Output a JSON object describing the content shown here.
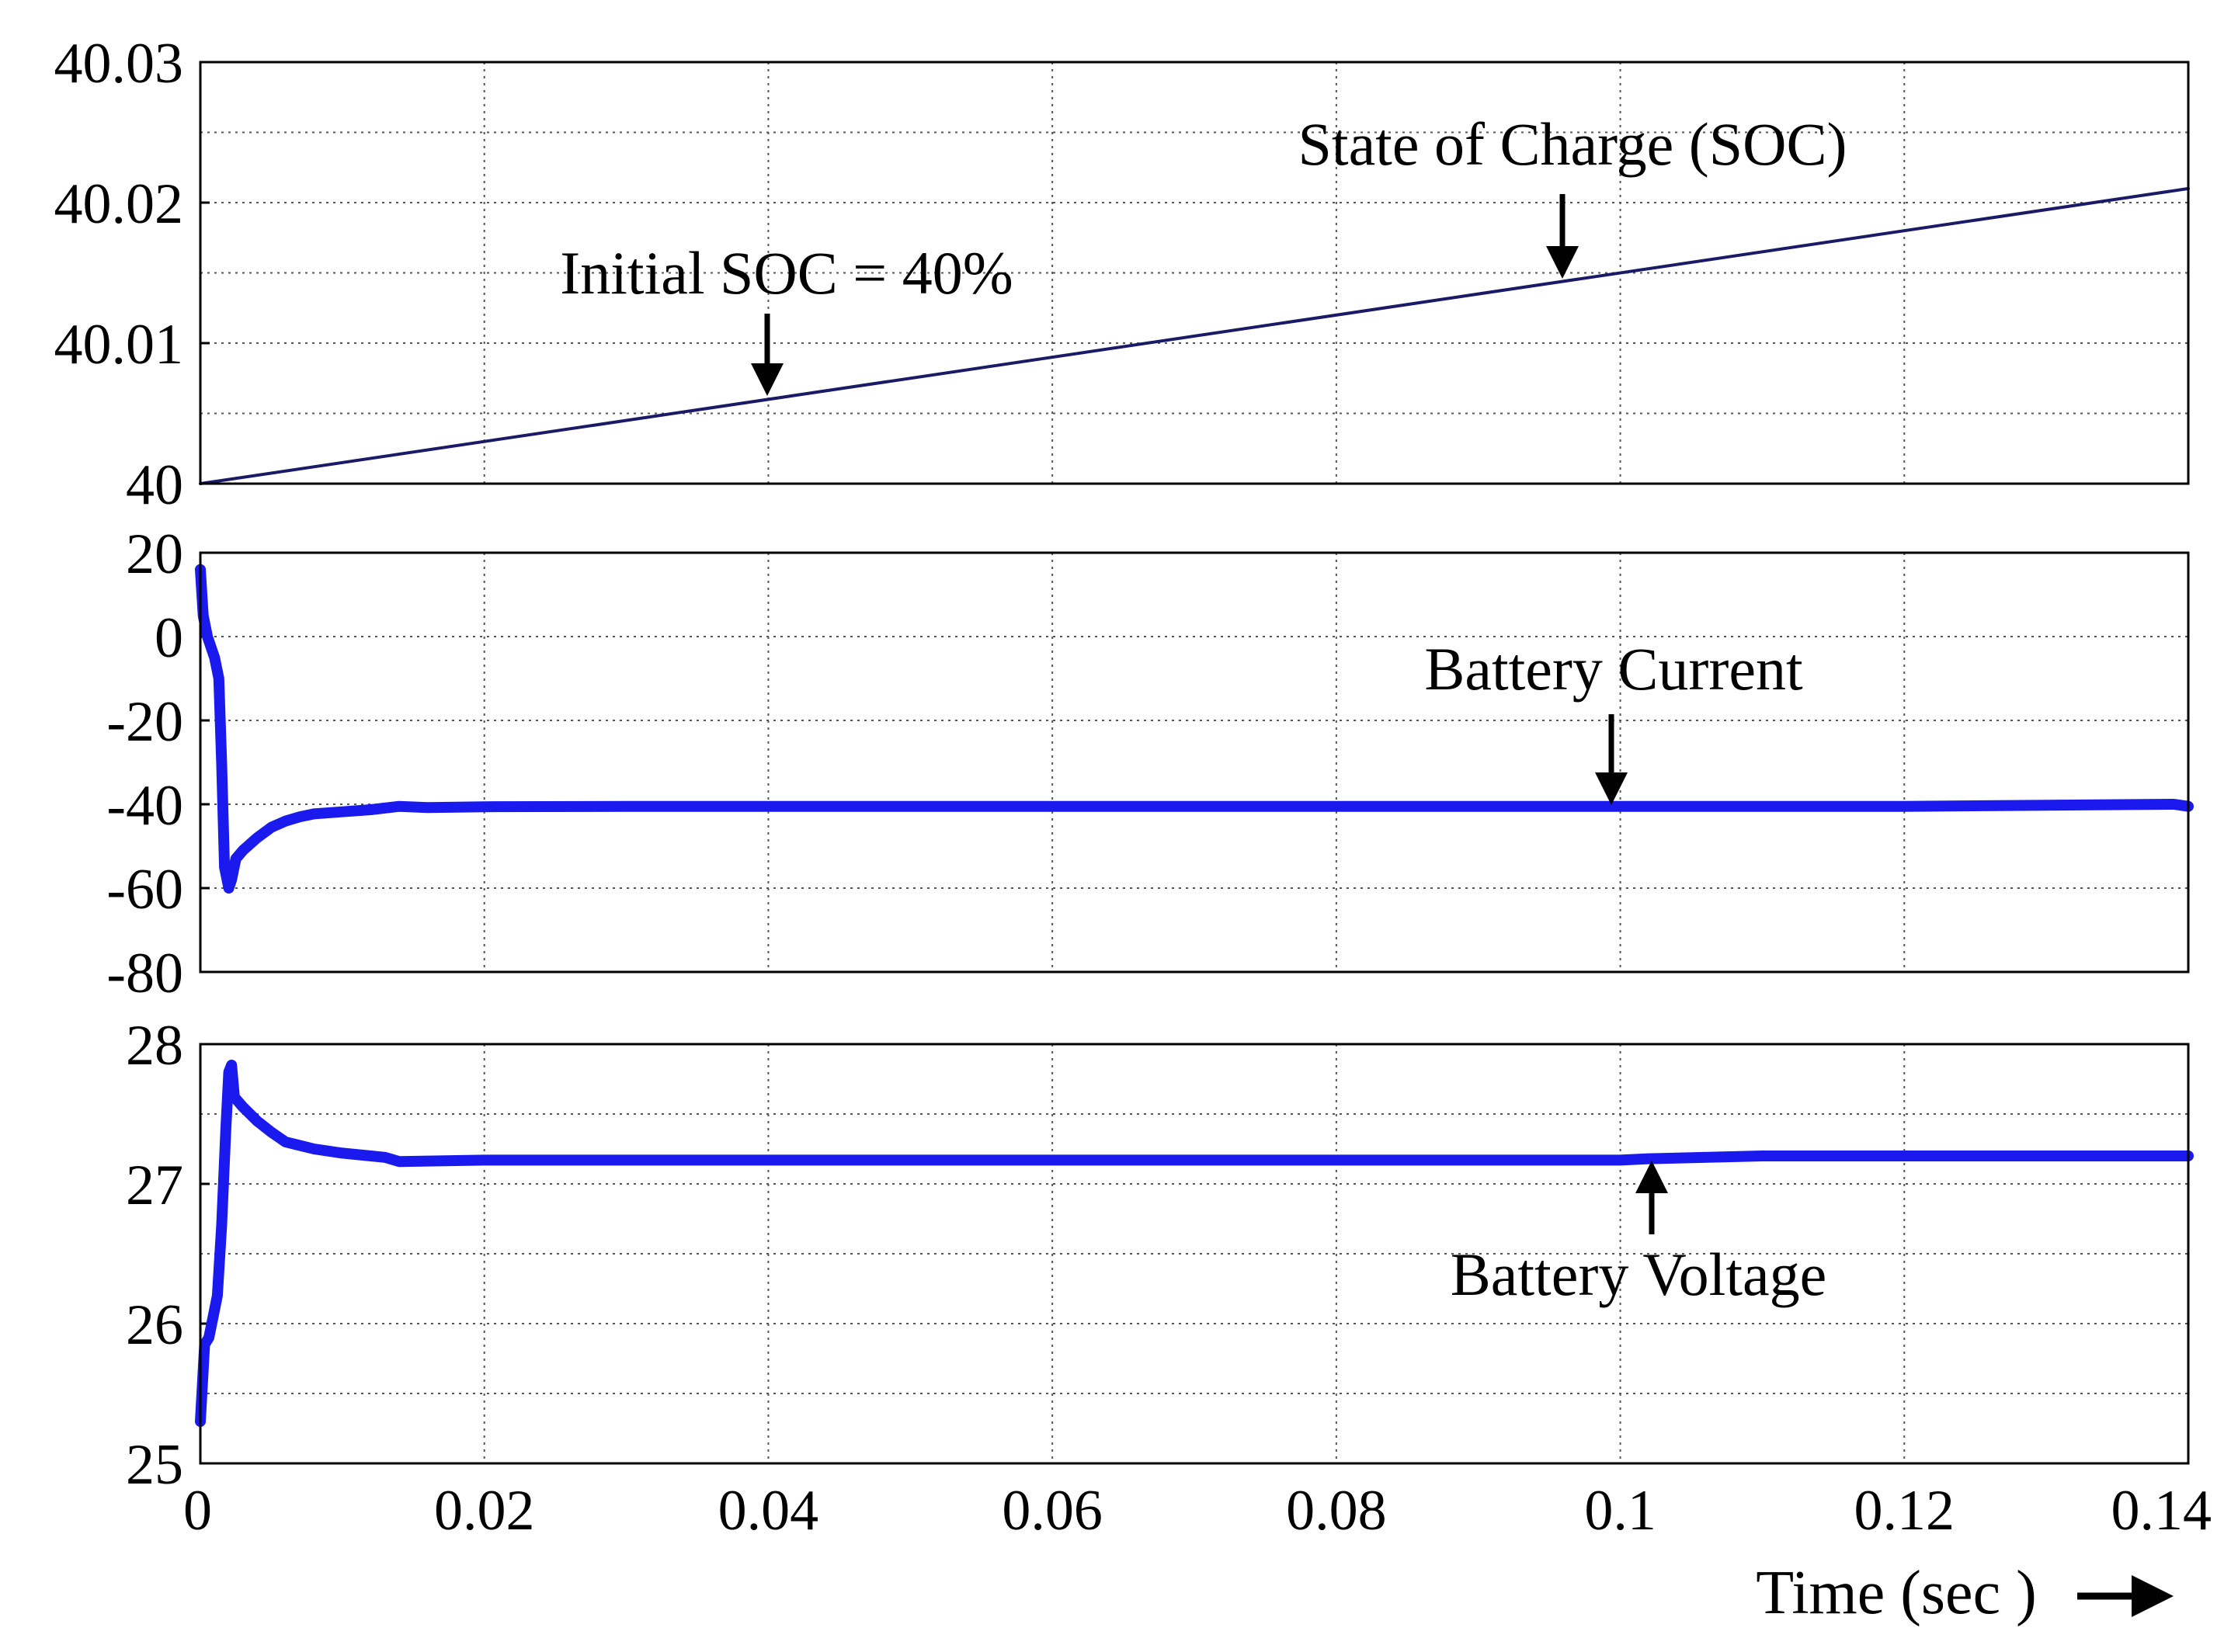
{
  "chart_data": [
    {
      "type": "line",
      "name": "soc",
      "title": "",
      "xlabel": "",
      "ylabel": "",
      "xlim": [
        0,
        0.14
      ],
      "ylim": [
        40,
        40.03
      ],
      "grid": true,
      "y_ticks": [
        40,
        40.01,
        40.02,
        40.03
      ],
      "y_tick_labels": [
        "40",
        "40.01",
        "40.02",
        "40.03"
      ],
      "line_color": "#1a1a66",
      "series": [
        {
          "name": "State of Charge (SOC)",
          "x": [
            0,
            0.14
          ],
          "y": [
            40,
            40.021
          ]
        }
      ],
      "annotations": [
        {
          "text": "State of Charge (SOC)",
          "x": 0.096,
          "y": 40.0148
        },
        {
          "text": "Initial SOC = 40%",
          "x": 0.04,
          "y": 40.0065
        }
      ]
    },
    {
      "type": "line",
      "name": "current",
      "title": "",
      "xlabel": "",
      "ylabel": "",
      "xlim": [
        0,
        0.14
      ],
      "ylim": [
        -80,
        20
      ],
      "grid": true,
      "y_ticks": [
        -80,
        -60,
        -40,
        -20,
        0,
        20
      ],
      "y_tick_labels": [
        "-80",
        "-60",
        "-40",
        "-20",
        "0",
        "20"
      ],
      "line_color": "#1a1aee",
      "series": [
        {
          "name": "Battery Current",
          "x": [
            0,
            0.0002,
            0.0005,
            0.0008,
            0.001,
            0.0013,
            0.0015,
            0.0017,
            0.002,
            0.0022,
            0.0025,
            0.003,
            0.004,
            0.005,
            0.006,
            0.007,
            0.008,
            0.01,
            0.012,
            0.014,
            0.016,
            0.02,
            0.03,
            0.05,
            0.07,
            0.09,
            0.1,
            0.12,
            0.139,
            0.14
          ],
          "y": [
            16,
            5,
            0,
            -3,
            -5,
            -10,
            -30,
            -55,
            -60,
            -58,
            -53,
            -51,
            -48,
            -45.5,
            -44,
            -43,
            -42.3,
            -41.8,
            -41.3,
            -40.5,
            -40.8,
            -40.6,
            -40.5,
            -40.5,
            -40.5,
            -40.5,
            -40.5,
            -40.5,
            -40,
            -40.5
          ]
        }
      ],
      "annotations": [
        {
          "text": "Battery Current",
          "x": 0.0995,
          "y": -40
        }
      ]
    },
    {
      "type": "line",
      "name": "voltage",
      "title": "",
      "xlabel": "Time (sec )",
      "ylabel": "",
      "xlim": [
        0,
        0.14
      ],
      "ylim": [
        25,
        28
      ],
      "grid": true,
      "x_ticks": [
        0,
        0.02,
        0.04,
        0.06,
        0.08,
        0.1,
        0.12,
        0.14
      ],
      "x_tick_labels": [
        "0",
        "0.02",
        "0.04",
        "0.06",
        "0.08",
        "0.1",
        "0.12",
        "0.14"
      ],
      "y_ticks": [
        25,
        26,
        27,
        28
      ],
      "y_tick_labels": [
        "25",
        "26",
        "27",
        "28"
      ],
      "line_color": "#1a1aee",
      "series": [
        {
          "name": "Battery Voltage",
          "x": [
            0,
            0.0003,
            0.0006,
            0.0009,
            0.0012,
            0.0015,
            0.0018,
            0.002,
            0.0022,
            0.0024,
            0.003,
            0.004,
            0.005,
            0.006,
            0.008,
            0.01,
            0.012,
            0.013,
            0.014,
            0.02,
            0.05,
            0.08,
            0.1,
            0.102,
            0.11,
            0.12,
            0.14
          ],
          "y": [
            25.3,
            25.85,
            25.9,
            26.05,
            26.2,
            26.7,
            27.4,
            27.8,
            27.85,
            27.62,
            27.55,
            27.45,
            27.37,
            27.3,
            27.25,
            27.22,
            27.2,
            27.19,
            27.16,
            27.17,
            27.17,
            27.17,
            27.17,
            27.18,
            27.2,
            27.2,
            27.2
          ]
        }
      ],
      "annotations": [
        {
          "text": "Battery Voltage",
          "x": 0.102,
          "y": 27.18
        }
      ]
    }
  ]
}
